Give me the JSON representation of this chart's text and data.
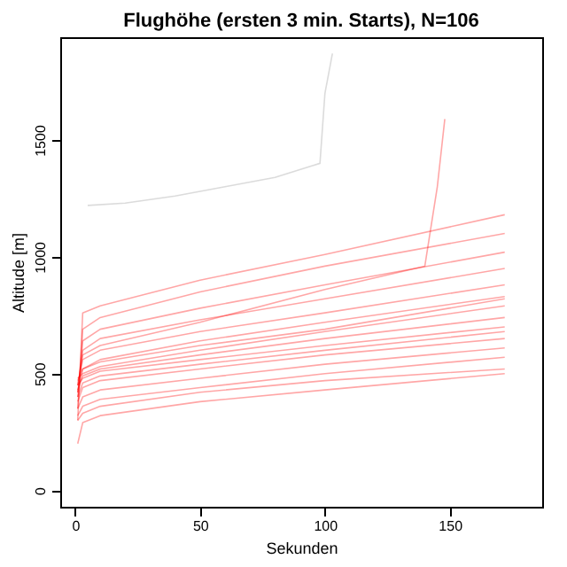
{
  "chart_data": {
    "type": "line",
    "title": "Flughöhe (ersten 3 min. Starts), N=106",
    "xlabel": "Sekunden",
    "ylabel": "Altitude [m]",
    "xlim": [
      -6,
      187
    ],
    "ylim": [
      -70,
      1940
    ],
    "xticks": [
      0,
      50,
      100,
      150
    ],
    "yticks": [
      0,
      500,
      1000,
      1500
    ],
    "grid": false,
    "legend": false,
    "x": [
      1,
      3,
      10,
      50,
      100,
      172
    ],
    "series": [
      {
        "color": "#ff0000",
        "values": [
          300,
          760,
          790,
          900,
          1010,
          1180
        ]
      },
      {
        "color": "#ff0000",
        "values": [
          350,
          690,
          740,
          850,
          960,
          1100
        ]
      },
      {
        "color": "#ff0000",
        "values": [
          400,
          640,
          690,
          780,
          880,
          1020
        ]
      },
      {
        "color": "#ff0000",
        "values": [
          420,
          600,
          650,
          730,
          820,
          950
        ]
      },
      {
        "color": "#ff0000",
        "values": [
          450,
          560,
          600,
          680,
          760,
          880
        ]
      },
      {
        "color": "#ff0000",
        "values": [
          470,
          520,
          560,
          640,
          720,
          830
        ]
      },
      {
        "color": "#ff0000",
        "values": [
          480,
          500,
          530,
          600,
          680,
          790
        ]
      },
      {
        "color": "#ff0000",
        "values": [
          430,
          490,
          520,
          580,
          650,
          740
        ]
      },
      {
        "color": "#ff0000",
        "values": [
          450,
          480,
          510,
          560,
          620,
          700
        ]
      },
      {
        "color": "#ff0000",
        "values": [
          400,
          460,
          490,
          540,
          600,
          680
        ]
      },
      {
        "color": "#ff0000",
        "values": [
          380,
          440,
          470,
          520,
          580,
          650
        ]
      },
      {
        "color": "#ff0000",
        "values": [
          350,
          400,
          430,
          480,
          540,
          610
        ]
      },
      {
        "color": "#ff0000",
        "values": [
          320,
          360,
          390,
          440,
          500,
          570
        ]
      },
      {
        "color": "#ff0000",
        "values": [
          300,
          330,
          360,
          420,
          470,
          520
        ]
      },
      {
        "color": "#ff0000",
        "values": [
          200,
          290,
          320,
          380,
          430,
          500
        ]
      },
      {
        "color": "#ff0000",
        "values": [
          420,
          520,
          550,
          620,
          690,
          820
        ]
      },
      {
        "color": "#ff0000",
        "x": [
          1,
          3,
          10,
          50,
          100,
          140,
          145,
          148
        ],
        "values": [
          450,
          580,
          620,
          720,
          860,
          960,
          1300,
          1590
        ]
      },
      {
        "color": "#999999",
        "x": [
          5,
          20,
          40,
          60,
          80,
          95,
          98,
          100,
          103
        ],
        "values": [
          1220,
          1230,
          1260,
          1300,
          1340,
          1390,
          1400,
          1700,
          1870
        ]
      }
    ]
  }
}
